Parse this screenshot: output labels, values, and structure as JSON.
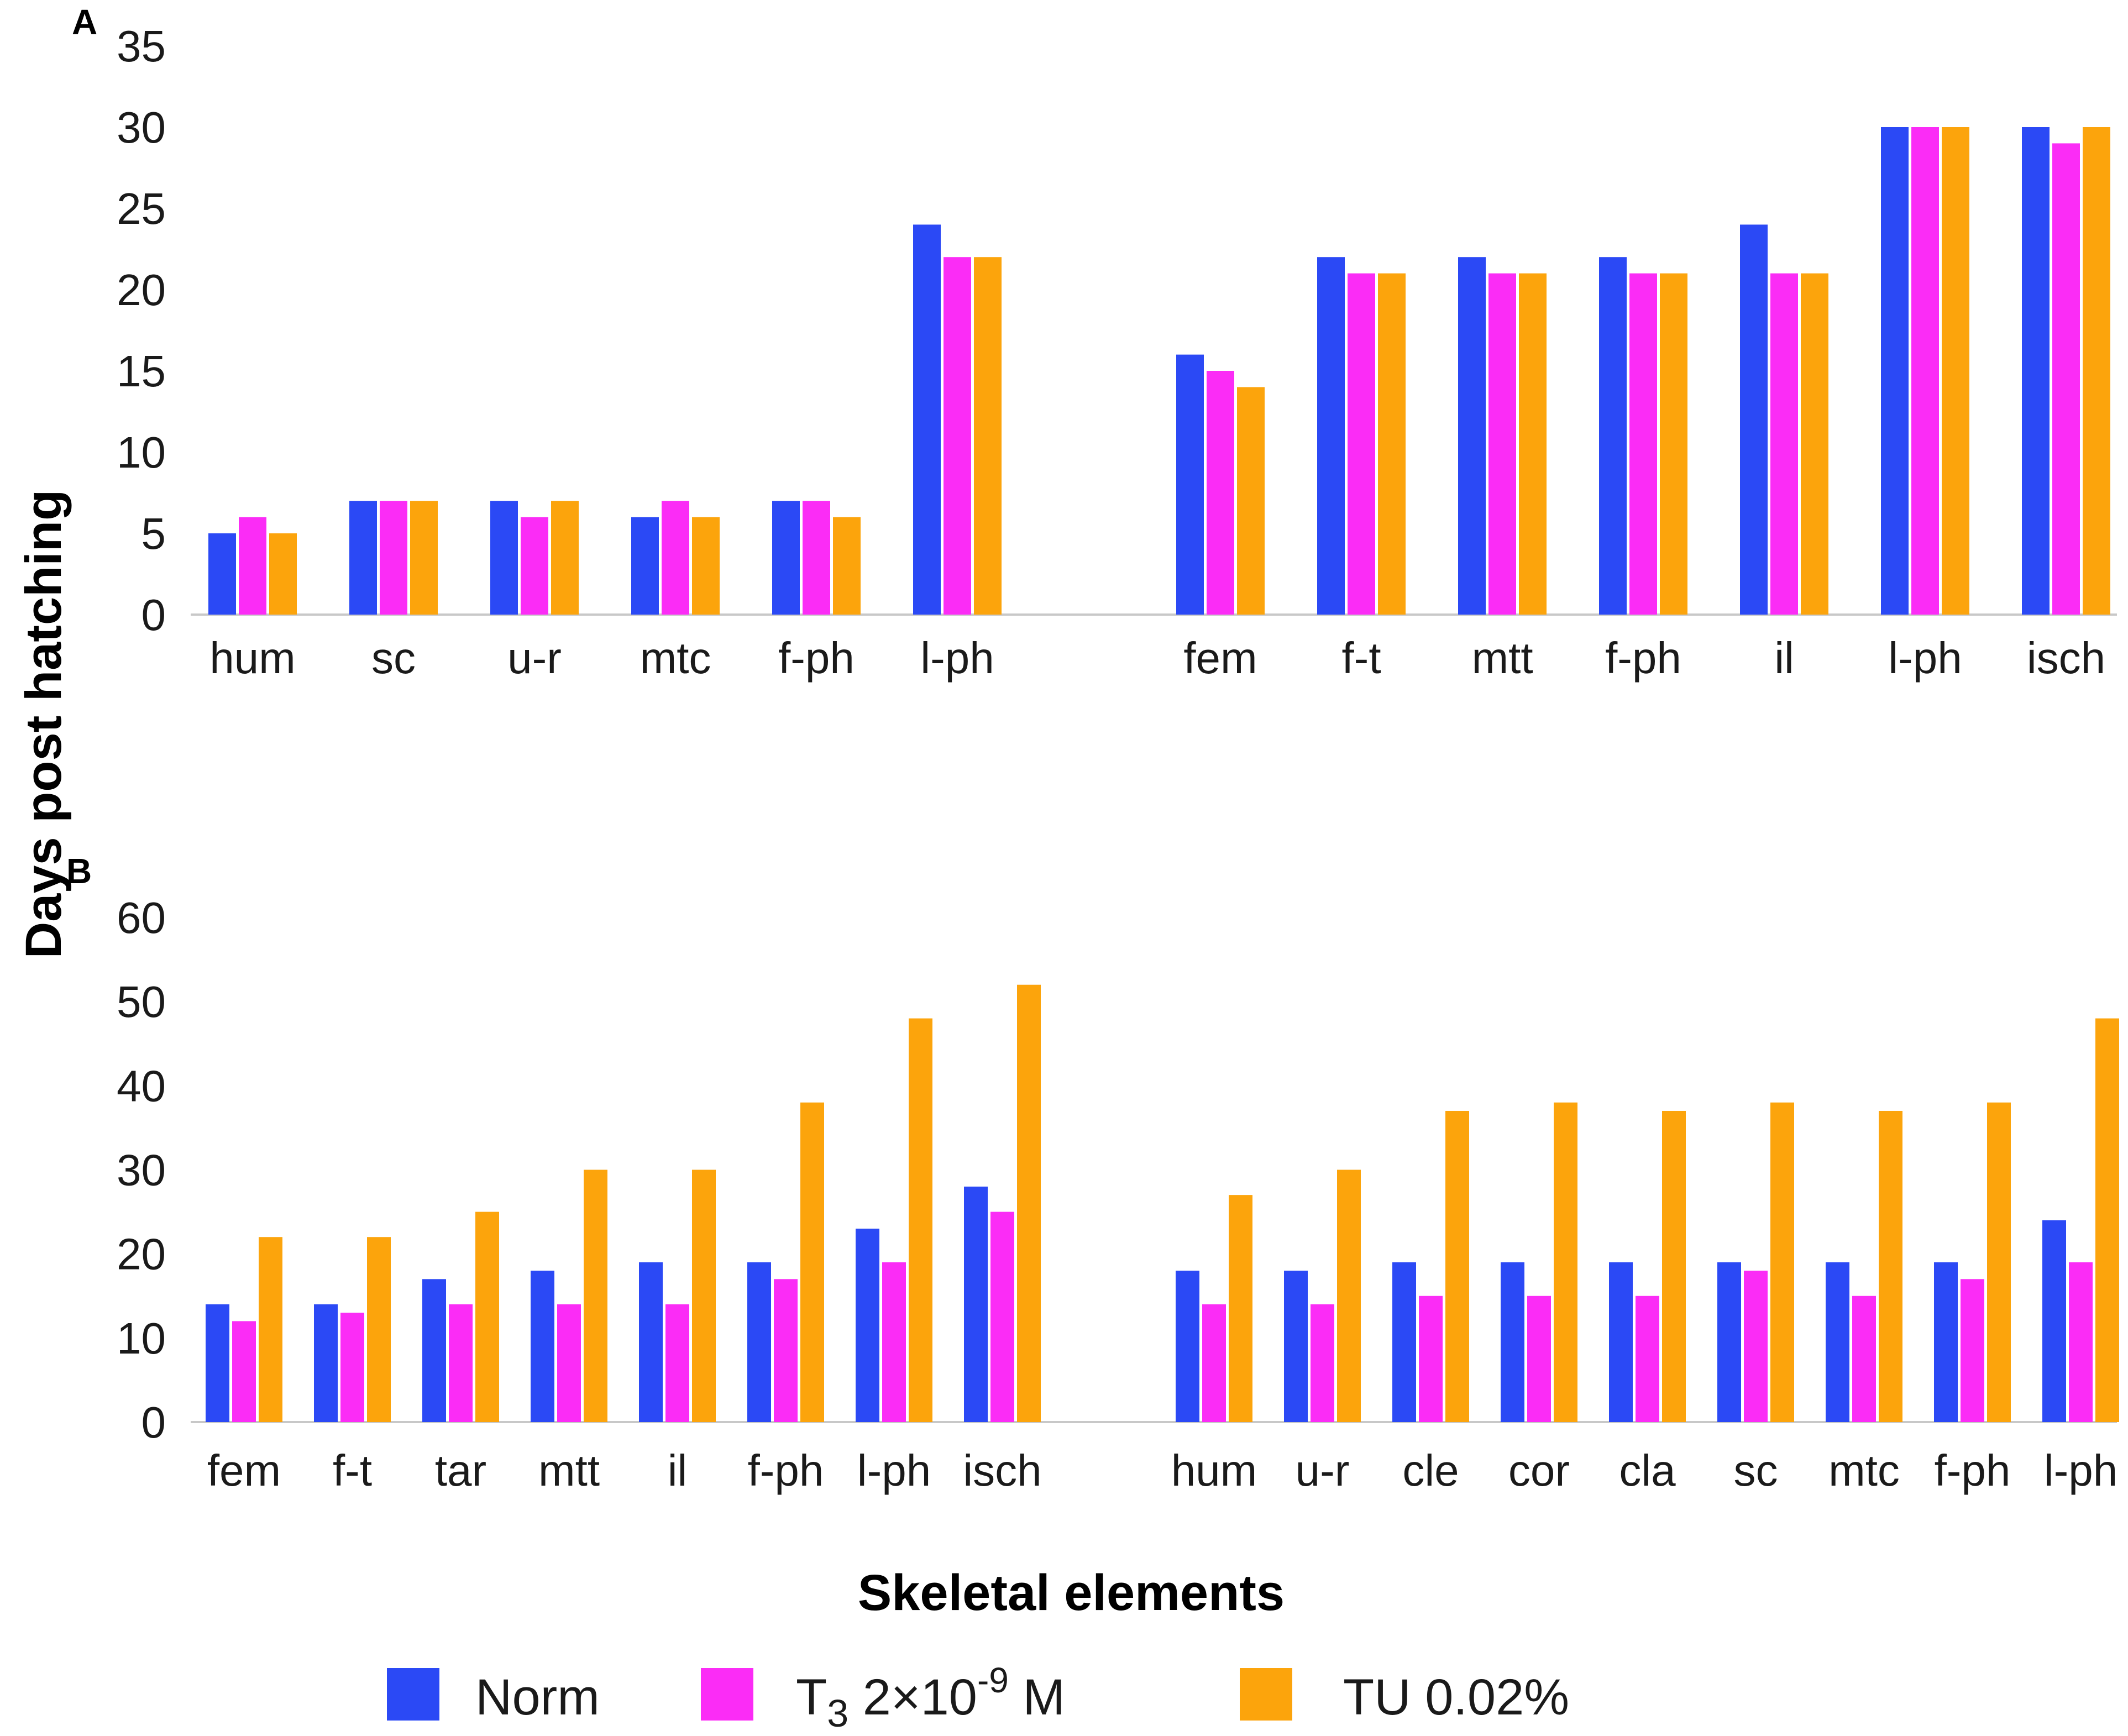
{
  "chart_data": [
    {
      "type": "bar",
      "panel": "A",
      "ylim": [
        0,
        35
      ],
      "yticks": [
        0,
        5,
        10,
        15,
        20,
        25,
        30,
        35
      ],
      "groups": [
        {
          "categories": [
            "hum",
            "sc",
            "u-r",
            "mtc",
            "f-ph",
            "l-ph"
          ],
          "series": [
            {
              "name": "Norm",
              "values": [
                5,
                7,
                7,
                6,
                7,
                24
              ]
            },
            {
              "name": "T3 2×10-9 M",
              "values": [
                6,
                7,
                6,
                7,
                7,
                22
              ]
            },
            {
              "name": "TU 0.02%",
              "values": [
                5,
                7,
                7,
                6,
                6,
                22
              ]
            }
          ]
        },
        {
          "categories": [
            "fem",
            "f-t",
            "mtt",
            "f-ph",
            "il",
            "l-ph",
            "isch"
          ],
          "series": [
            {
              "name": "Norm",
              "values": [
                16,
                22,
                22,
                22,
                24,
                30,
                30
              ]
            },
            {
              "name": "T3 2×10-9 M",
              "values": [
                15,
                21,
                21,
                21,
                21,
                30,
                29
              ]
            },
            {
              "name": "TU 0.02%",
              "values": [
                14,
                21,
                21,
                21,
                21,
                30,
                30
              ]
            }
          ]
        }
      ]
    },
    {
      "type": "bar",
      "panel": "B",
      "ylim": [
        0,
        60
      ],
      "yticks": [
        0,
        10,
        20,
        30,
        40,
        50,
        60
      ],
      "groups": [
        {
          "categories": [
            "fem",
            "f-t",
            "tar",
            "mtt",
            "il",
            "f-ph",
            "l-ph",
            "isch"
          ],
          "series": [
            {
              "name": "Norm",
              "values": [
                14,
                14,
                17,
                18,
                19,
                19,
                23,
                28
              ]
            },
            {
              "name": "T3 2×10-9 M",
              "values": [
                12,
                13,
                14,
                14,
                14,
                17,
                19,
                25
              ]
            },
            {
              "name": "TU 0.02%",
              "values": [
                22,
                22,
                25,
                30,
                30,
                38,
                48,
                52
              ]
            }
          ]
        },
        {
          "categories": [
            "hum",
            "u-r",
            "cle",
            "cor",
            "cla",
            "sc",
            "mtc",
            "f-ph",
            "l-ph"
          ],
          "series": [
            {
              "name": "Norm",
              "values": [
                18,
                18,
                19,
                19,
                19,
                19,
                19,
                19,
                24
              ]
            },
            {
              "name": "T3 2×10-9 M",
              "values": [
                14,
                14,
                15,
                15,
                15,
                18,
                15,
                17,
                19
              ]
            },
            {
              "name": "TU 0.02%",
              "values": [
                27,
                30,
                37,
                38,
                37,
                38,
                37,
                38,
                48
              ]
            }
          ]
        }
      ]
    }
  ],
  "ylabel": "Days post hatching",
  "xlabel": "Skeletal elements",
  "legend": [
    {
      "name": "Norm",
      "color": "#2b49f5"
    },
    {
      "name": "T3 2×10-9 M",
      "color": "#fb2cf6",
      "base": "T",
      "sub": "3",
      "mid": " 2×10",
      "sup": "-9",
      "tail": " M"
    },
    {
      "name": "TU 0.02%",
      "color": "#fca40c"
    }
  ],
  "colors": {
    "Norm": "#2b49f5",
    "T3": "#fb2cf6",
    "TU": "#fca40c"
  }
}
